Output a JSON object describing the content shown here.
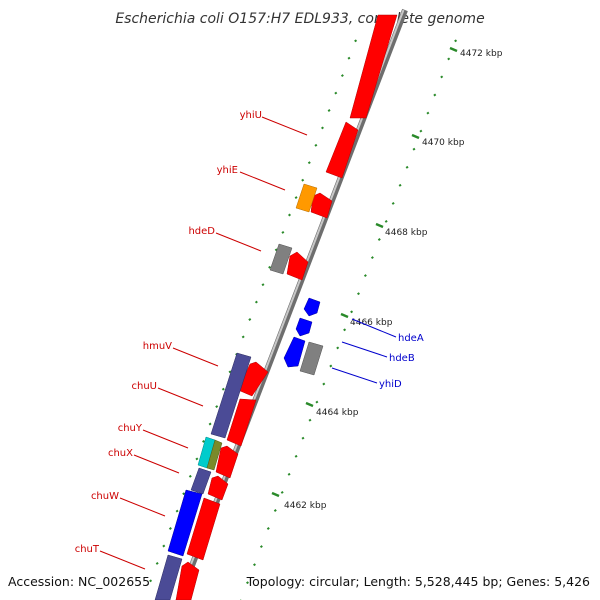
{
  "title": "Escherichia coli O157:H7 EDL933, complete genome",
  "accession": "Accession: NC_002655",
  "topology": "Topology: circular; Length: 5,528,445 bp; Genes: 5,426",
  "colors": {
    "backbone": "#9a9a9a",
    "forward_gene": "#ff0000",
    "reverse_gene": "#0000ff",
    "other_gene": "#808080",
    "heme_gene": "#4b4b96",
    "rna_gene": "#ff9900",
    "cyan_gene": "#00cccc",
    "olive_gene": "#7a8a2a",
    "tick": "#2a8a2a",
    "label_forward": "#cc0000",
    "label_reverse": "#0000cc"
  },
  "ticks": [
    {
      "label": "4472 kbp"
    },
    {
      "label": "4470 kbp"
    },
    {
      "label": "4468 kbp"
    },
    {
      "label": "4466 kbp"
    },
    {
      "label": "4464 kbp"
    },
    {
      "label": "4462 kbp"
    }
  ],
  "genes": [
    {
      "name": "yhiU"
    },
    {
      "name": "yhiE"
    },
    {
      "name": "hdeD"
    },
    {
      "name": "hdeA"
    },
    {
      "name": "hdeB"
    },
    {
      "name": "yhiD"
    },
    {
      "name": "hmuV"
    },
    {
      "name": "chuU"
    },
    {
      "name": "chuY"
    },
    {
      "name": "chuX"
    },
    {
      "name": "chuW"
    },
    {
      "name": "chuT"
    }
  ]
}
